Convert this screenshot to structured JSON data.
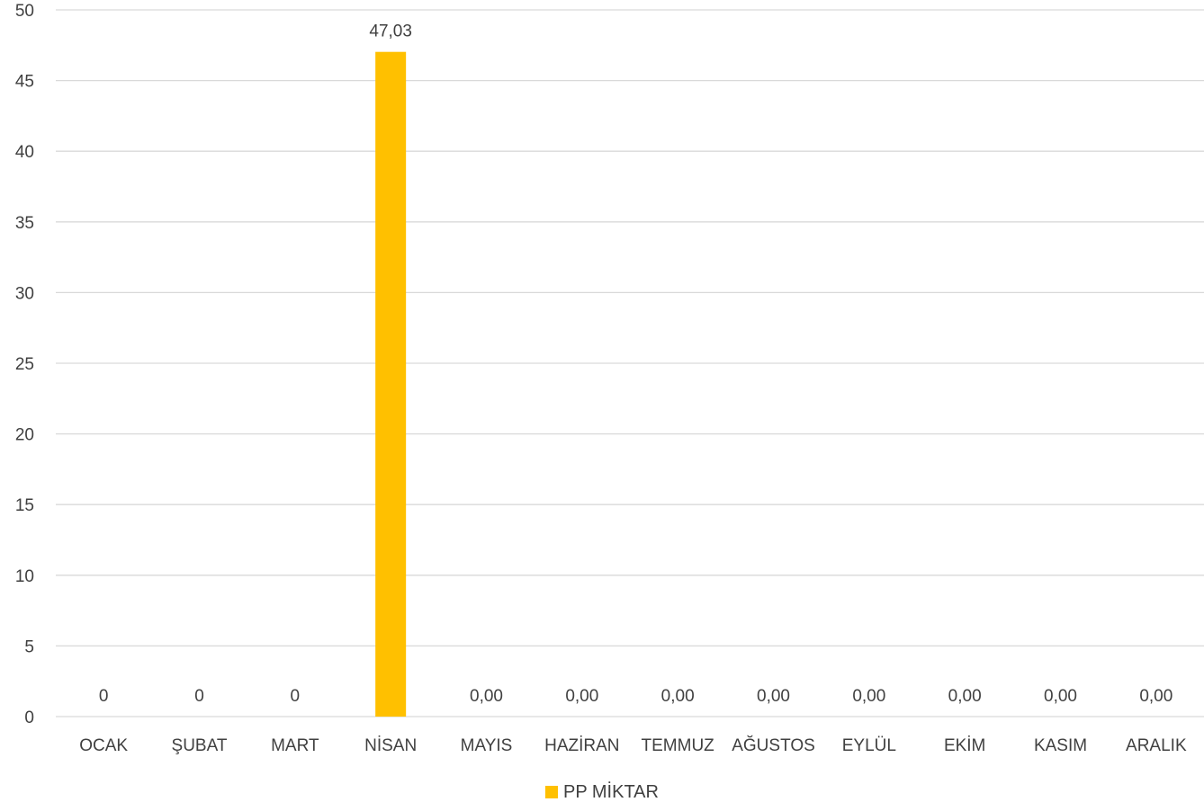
{
  "chart_data": {
    "type": "bar",
    "categories": [
      "OCAK",
      "ŞUBAT",
      "MART",
      "NİSAN",
      "MAYIS",
      "HAZİRAN",
      "TEMMUZ",
      "AĞUSTOS",
      "EYLÜL",
      "EKİM",
      "KASIM",
      "ARALIK"
    ],
    "series": [
      {
        "name": "PP MİKTAR",
        "values": [
          0,
          0,
          0,
          47.03,
          0,
          0,
          0,
          0,
          0,
          0,
          0,
          0
        ],
        "data_labels": [
          "0",
          "0",
          "0",
          "47,03",
          "0,00",
          "0,00",
          "0,00",
          "0,00",
          "0,00",
          "0,00",
          "0,00",
          "0,00"
        ],
        "color": "#FFC000"
      }
    ],
    "ylim": [
      0,
      50
    ],
    "yticks": [
      "0",
      "5",
      "10",
      "15",
      "20",
      "25",
      "30",
      "35",
      "40",
      "45",
      "50"
    ],
    "grid": true,
    "legend_position": "bottom"
  },
  "colors": {
    "grid": "#D9D9D9",
    "text": "#404040"
  }
}
